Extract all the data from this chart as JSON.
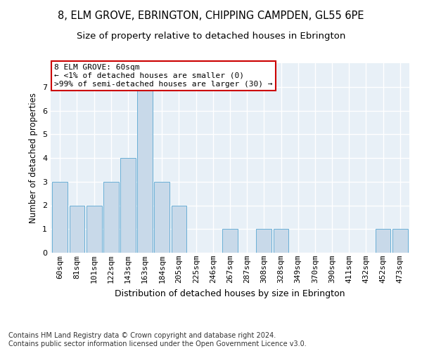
{
  "title": "8, ELM GROVE, EBRINGTON, CHIPPING CAMPDEN, GL55 6PE",
  "subtitle": "Size of property relative to detached houses in Ebrington",
  "xlabel": "Distribution of detached houses by size in Ebrington",
  "ylabel": "Number of detached properties",
  "categories": [
    "60sqm",
    "81sqm",
    "101sqm",
    "122sqm",
    "143sqm",
    "163sqm",
    "184sqm",
    "205sqm",
    "225sqm",
    "246sqm",
    "267sqm",
    "287sqm",
    "308sqm",
    "328sqm",
    "349sqm",
    "370sqm",
    "390sqm",
    "411sqm",
    "432sqm",
    "452sqm",
    "473sqm"
  ],
  "values": [
    3,
    2,
    2,
    3,
    4,
    7,
    3,
    2,
    0,
    0,
    1,
    0,
    1,
    1,
    0,
    0,
    0,
    0,
    0,
    1,
    1
  ],
  "bar_color": "#c8d9e9",
  "bar_edge_color": "#6aafd6",
  "annotation_text": "8 ELM GROVE: 60sqm\n← <1% of detached houses are smaller (0)\n>99% of semi-detached houses are larger (30) →",
  "annotation_box_color": "#ffffff",
  "annotation_box_edge_color": "#cc0000",
  "ylim": [
    0,
    8
  ],
  "yticks": [
    0,
    1,
    2,
    3,
    4,
    5,
    6,
    7
  ],
  "background_color": "#e8f0f7",
  "grid_color": "#ffffff",
  "title_fontsize": 10.5,
  "subtitle_fontsize": 9.5,
  "xlabel_fontsize": 9,
  "ylabel_fontsize": 8.5,
  "tick_fontsize": 8,
  "annotation_fontsize": 8,
  "footer_text": "Contains HM Land Registry data © Crown copyright and database right 2024.\nContains public sector information licensed under the Open Government Licence v3.0.",
  "footer_fontsize": 7
}
